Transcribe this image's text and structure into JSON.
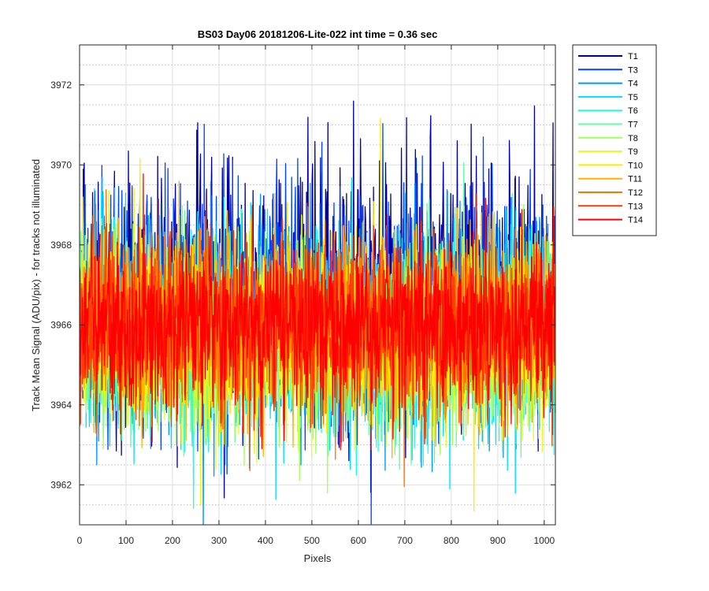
{
  "chart_data": {
    "type": "line",
    "title": "BS03 Day06 20181206-Lite-022 int time = 0.36 sec",
    "xlabel": "Pixels",
    "ylabel": "Track Mean Signal (ADU/pix) - for tracks not illuminated",
    "xlim": [
      0,
      1024
    ],
    "ylim": [
      3961,
      3973
    ],
    "x_ticks": [
      0,
      100,
      200,
      300,
      400,
      500,
      600,
      700,
      800,
      900,
      1000
    ],
    "y_ticks": [
      3962,
      3964,
      3966,
      3968,
      3970,
      3972
    ],
    "y_minor_ticks": [
      3961.5,
      3962.5,
      3963,
      3963.5,
      3964.5,
      3965,
      3965.5,
      3966.5,
      3967,
      3967.5,
      3968.5,
      3969,
      3969.5,
      3970.5,
      3971,
      3971.5,
      3972.5
    ],
    "grid": true,
    "legend_position": "outside-top-right",
    "n_points": 1024,
    "series": [
      {
        "name": "T1",
        "color": "#00009f",
        "mean": 3966.8,
        "spread": 1.55
      },
      {
        "name": "T3",
        "color": "#0043ff",
        "mean": 3966.6,
        "spread": 1.45
      },
      {
        "name": "T4",
        "color": "#0096ff",
        "mean": 3965.9,
        "spread": 1.2
      },
      {
        "name": "T5",
        "color": "#00dfff",
        "mean": 3965.7,
        "spread": 1.15
      },
      {
        "name": "T6",
        "color": "#1dffe2",
        "mean": 3965.6,
        "spread": 1.15
      },
      {
        "name": "T7",
        "color": "#5fffa0",
        "mean": 3965.6,
        "spread": 1.15
      },
      {
        "name": "T8",
        "color": "#a0ff5f",
        "mean": 3965.6,
        "spread": 1.1
      },
      {
        "name": "T9",
        "color": "#e2ff1d",
        "mean": 3965.7,
        "spread": 1.1
      },
      {
        "name": "T10",
        "color": "#ffea00",
        "mean": 3965.8,
        "spread": 1.1
      },
      {
        "name": "T11",
        "color": "#ffb000",
        "mean": 3965.9,
        "spread": 1.05
      },
      {
        "name": "T12",
        "color": "#ff7400",
        "mean": 3966.0,
        "spread": 1.05
      },
      {
        "name": "T13",
        "color": "#ff3a00",
        "mean": 3966.0,
        "spread": 1.0
      },
      {
        "name": "T14",
        "color": "#ff0000",
        "mean": 3966.0,
        "spread": 1.0
      }
    ]
  }
}
